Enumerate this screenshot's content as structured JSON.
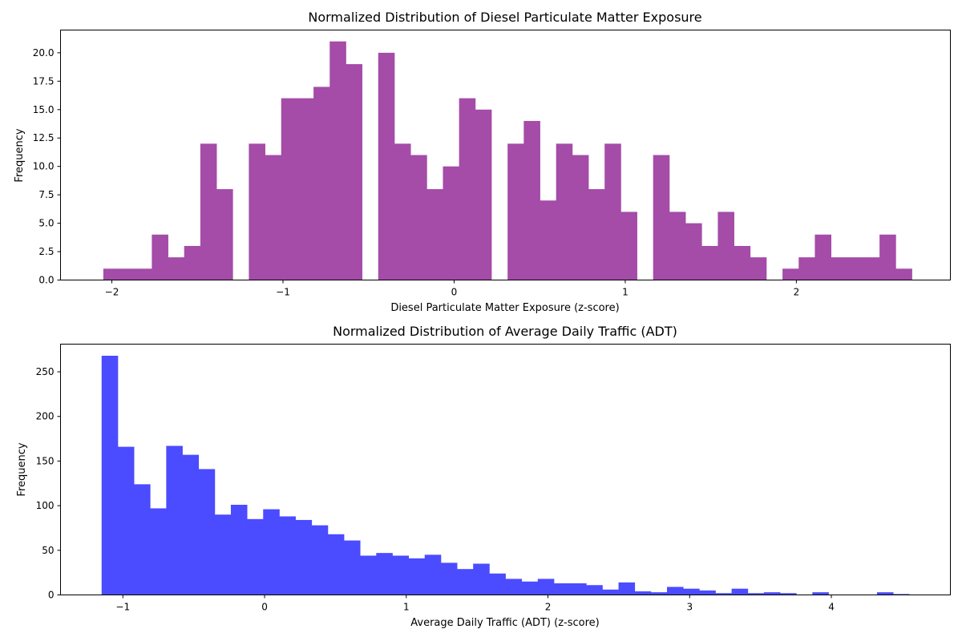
{
  "chart_data": [
    {
      "type": "bar",
      "title": "Normalized Distribution of Diesel Particulate Matter Exposure",
      "xlabel": "Diesel Particulate Matter Exposure (z-score)",
      "ylabel": "Frequency",
      "color": "#a44ca8",
      "xlim": [
        -2.3,
        2.9
      ],
      "ylim": [
        0,
        22
      ],
      "xticks": [
        {
          "value": -2,
          "label": "−2"
        },
        {
          "value": -1,
          "label": "−1"
        },
        {
          "value": 0,
          "label": "0"
        },
        {
          "value": 1,
          "label": "1"
        },
        {
          "value": 2,
          "label": "2"
        }
      ],
      "yticks": [
        {
          "value": 0,
          "label": "0.0"
        },
        {
          "value": 2.5,
          "label": "2.5"
        },
        {
          "value": 5,
          "label": "5.0"
        },
        {
          "value": 7.5,
          "label": "7.5"
        },
        {
          "value": 10,
          "label": "10.0"
        },
        {
          "value": 12.5,
          "label": "12.5"
        },
        {
          "value": 15,
          "label": "15.0"
        },
        {
          "value": 17.5,
          "label": "17.5"
        },
        {
          "value": 20,
          "label": "20.0"
        }
      ],
      "bin_start": -2.05,
      "bin_width": 0.0945,
      "values": [
        1,
        1,
        1,
        4,
        2,
        3,
        12,
        8,
        0,
        12,
        11,
        16,
        16,
        17,
        21,
        19,
        0,
        20,
        12,
        11,
        8,
        10,
        16,
        15,
        0,
        12,
        14,
        7,
        12,
        11,
        8,
        12,
        6,
        0,
        11,
        6,
        5,
        3,
        6,
        3,
        2,
        0,
        1,
        2,
        4,
        2,
        2,
        2,
        4,
        1
      ]
    },
    {
      "type": "bar",
      "title": "Normalized Distribution of Average Daily Traffic (ADT)",
      "xlabel": "Average Daily Traffic (ADT) (z-score)",
      "ylabel": "Frequency",
      "color": "#4b4bff",
      "xlim": [
        -1.44,
        4.84
      ],
      "ylim": [
        0,
        281
      ],
      "xticks": [
        {
          "value": -1,
          "label": "−1"
        },
        {
          "value": 0,
          "label": "0"
        },
        {
          "value": 1,
          "label": "1"
        },
        {
          "value": 2,
          "label": "2"
        },
        {
          "value": 3,
          "label": "3"
        },
        {
          "value": 4,
          "label": "4"
        }
      ],
      "yticks": [
        {
          "value": 0,
          "label": "0"
        },
        {
          "value": 50,
          "label": "50"
        },
        {
          "value": 100,
          "label": "100"
        },
        {
          "value": 150,
          "label": "150"
        },
        {
          "value": 200,
          "label": "200"
        },
        {
          "value": 250,
          "label": "250"
        }
      ],
      "bin_start": -1.15,
      "bin_width": 0.114,
      "values": [
        268,
        166,
        124,
        97,
        167,
        157,
        141,
        90,
        101,
        85,
        96,
        88,
        84,
        78,
        68,
        61,
        44,
        47,
        44,
        41,
        45,
        36,
        29,
        35,
        24,
        18,
        15,
        18,
        13,
        13,
        11,
        6,
        14,
        4,
        3,
        9,
        7,
        5,
        2,
        7,
        2,
        3,
        2,
        0,
        3,
        0,
        0,
        0,
        3,
        1
      ]
    }
  ]
}
